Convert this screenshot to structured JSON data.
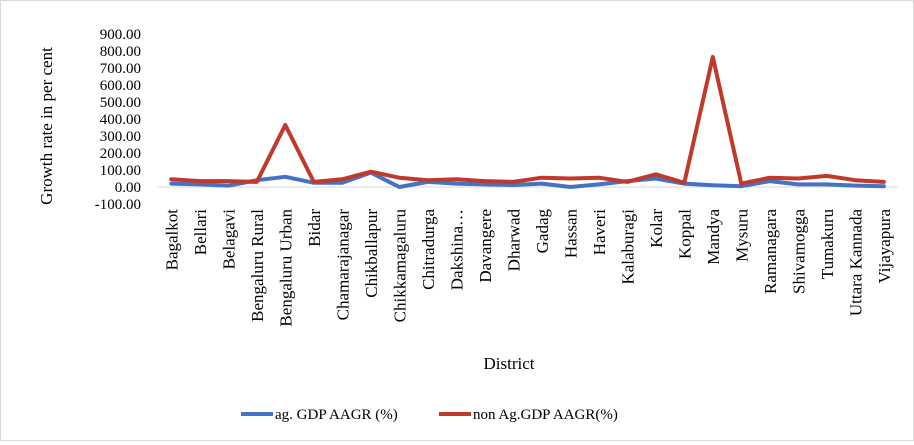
{
  "chart_data": {
    "type": "line",
    "xlabel": "District",
    "ylabel": "Growth rate in per cent",
    "ylim": [
      -100,
      900
    ],
    "yticks": [
      -100,
      0,
      100,
      200,
      300,
      400,
      500,
      600,
      700,
      800,
      900
    ],
    "ytick_labels": [
      "-100.00",
      "0.00",
      "100.00",
      "200.00",
      "300.00",
      "400.00",
      "500.00",
      "600.00",
      "700.00",
      "800.00",
      "900.00"
    ],
    "grid": false,
    "legend_position": "bottom",
    "categories": [
      "Bagalkot",
      "Bellari",
      "Belagavi",
      "Bengaluru  Rural",
      "Bengaluru  Urban",
      "Bidar",
      "Chamarajanagar",
      "Chikballapur",
      "Chikkamagaluru",
      "Chitradurga",
      "Dakshina…",
      "Davangere",
      "Dharwad",
      "Gadag",
      "Hassan",
      "Haveri",
      "Kalaburagi",
      "Kolar",
      "Koppal",
      "Mandya",
      "Mysuru",
      "Ramanagara",
      "Shivamogga",
      "Tumakuru",
      "Uttara Kannada",
      "Vijayapura"
    ],
    "series": [
      {
        "name": "ag. GDP AAGR (%)",
        "color": "#4472c4",
        "values": [
          20,
          15,
          8,
          40,
          60,
          25,
          25,
          85,
          0,
          30,
          20,
          15,
          12,
          20,
          0,
          15,
          35,
          50,
          20,
          10,
          5,
          35,
          15,
          15,
          8,
          5
        ]
      },
      {
        "name": "non Ag.GDP AAGR(%)",
        "color": "#c0392b",
        "values": [
          45,
          35,
          35,
          30,
          365,
          30,
          45,
          90,
          55,
          40,
          45,
          35,
          30,
          55,
          50,
          55,
          30,
          75,
          25,
          765,
          20,
          55,
          50,
          65,
          40,
          30
        ]
      }
    ]
  }
}
